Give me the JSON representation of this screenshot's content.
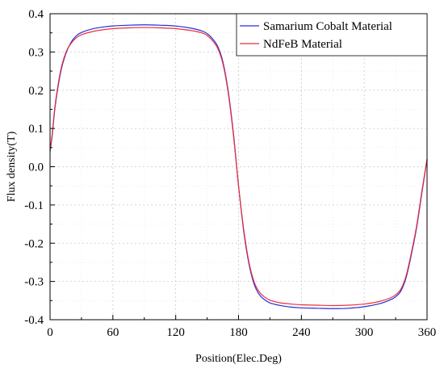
{
  "chart_data": {
    "type": "line",
    "xlabel": "Position(Elec.Deg)",
    "ylabel": "Flux density(T)",
    "xlim": [
      0,
      360
    ],
    "ylim": [
      -0.4,
      0.4
    ],
    "x_ticks": [
      0,
      60,
      120,
      180,
      240,
      300,
      360
    ],
    "y_ticks": [
      0.4,
      0.3,
      0.2,
      0.1,
      0.0,
      -0.1,
      -0.2,
      -0.3,
      -0.4
    ],
    "x_tick_labels": [
      "0",
      "60",
      "120",
      "180",
      "240",
      "300",
      "360"
    ],
    "y_tick_labels": [
      "0.4",
      "0.3",
      "0.2",
      "0.1",
      "0.0",
      "-0.1",
      "-0.2",
      "-0.3",
      "-0.4"
    ],
    "grid": true,
    "legend_position": "top-right",
    "series": [
      {
        "name": "Samarium Cobalt Material",
        "color": "#2b2bd9",
        "x": [
          0,
          2,
          5,
          10,
          15,
          20,
          25,
          30,
          40,
          50,
          60,
          75,
          90,
          105,
          120,
          135,
          145,
          150,
          155,
          160,
          165,
          170,
          175,
          180,
          185,
          190,
          195,
          200,
          205,
          210,
          215,
          220,
          230,
          240,
          255,
          270,
          285,
          300,
          315,
          325,
          330,
          335,
          340,
          345,
          350,
          355,
          360
        ],
        "y": [
          0.04,
          0.08,
          0.16,
          0.245,
          0.295,
          0.325,
          0.342,
          0.351,
          0.36,
          0.365,
          0.368,
          0.37,
          0.371,
          0.37,
          0.368,
          0.362,
          0.355,
          0.348,
          0.335,
          0.315,
          0.275,
          0.2,
          0.09,
          -0.05,
          -0.17,
          -0.255,
          -0.308,
          -0.335,
          -0.348,
          -0.356,
          -0.36,
          -0.363,
          -0.367,
          -0.369,
          -0.37,
          -0.371,
          -0.37,
          -0.366,
          -0.358,
          -0.348,
          -0.34,
          -0.325,
          -0.29,
          -0.23,
          -0.16,
          -0.07,
          0.02
        ]
      },
      {
        "name": "NdFeB Material",
        "color": "#e8313a",
        "x": [
          0,
          2,
          5,
          10,
          15,
          20,
          25,
          30,
          40,
          50,
          60,
          75,
          90,
          105,
          120,
          135,
          145,
          150,
          155,
          160,
          165,
          170,
          175,
          180,
          185,
          190,
          195,
          200,
          205,
          210,
          215,
          220,
          230,
          240,
          255,
          270,
          285,
          300,
          315,
          325,
          330,
          335,
          340,
          345,
          350,
          355,
          360
        ],
        "y": [
          0.04,
          0.085,
          0.165,
          0.25,
          0.298,
          0.322,
          0.337,
          0.345,
          0.353,
          0.358,
          0.361,
          0.363,
          0.364,
          0.363,
          0.361,
          0.356,
          0.35,
          0.343,
          0.33,
          0.31,
          0.27,
          0.195,
          0.085,
          -0.05,
          -0.165,
          -0.25,
          -0.302,
          -0.328,
          -0.341,
          -0.349,
          -0.353,
          -0.356,
          -0.359,
          -0.361,
          -0.362,
          -0.363,
          -0.362,
          -0.359,
          -0.352,
          -0.343,
          -0.335,
          -0.32,
          -0.285,
          -0.225,
          -0.155,
          -0.065,
          0.02
        ]
      }
    ]
  }
}
